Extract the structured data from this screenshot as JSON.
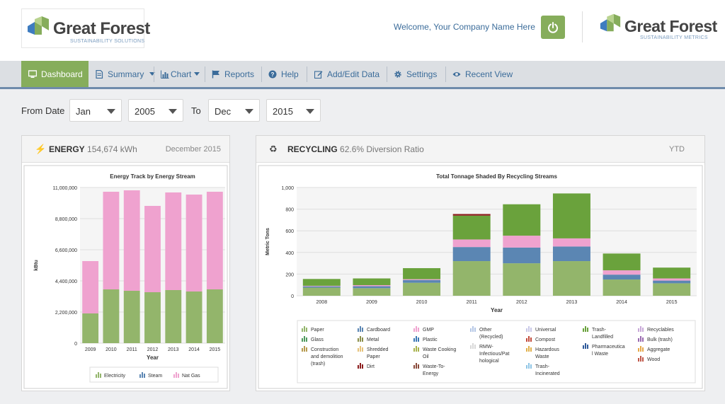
{
  "header": {
    "brand_name": "Great Forest",
    "brand_tagline": "SUSTAINABILITY SOLUTIONS",
    "brand2_name": "Great Forest",
    "brand2_tagline": "SUSTAINABILITY METRICS",
    "welcome": "Welcome, Your Company Name Here",
    "power_icon": "power-icon"
  },
  "nav": {
    "items": [
      {
        "label": "Dashboard",
        "icon": "monitor-icon",
        "active": true
      },
      {
        "label": "Summary",
        "icon": "document-icon",
        "dropdown": true
      },
      {
        "label": "Chart",
        "icon": "bar-chart-icon",
        "dropdown": true
      },
      {
        "label": "Reports",
        "icon": "flag-icon"
      },
      {
        "label": "Help",
        "icon": "question-icon"
      },
      {
        "label": "Add/Edit Data",
        "icon": "edit-icon"
      },
      {
        "label": "Settings",
        "icon": "gear-icon"
      },
      {
        "label": "Recent View",
        "icon": "eye-icon"
      }
    ]
  },
  "filters": {
    "from_label": "From Date",
    "to_label": "To",
    "from_month": "Jan",
    "from_year": "2005",
    "to_month": "Dec",
    "to_year": "2015"
  },
  "energy_panel": {
    "title": "ENERGY",
    "value": "154,674 kWh",
    "period": "December 2015"
  },
  "recycling_panel": {
    "title": "RECYCLING",
    "value": "62.6% Diversion Ratio",
    "period": "YTD"
  },
  "colors": {
    "accent_green": "#86ad5b",
    "nav_blue": "#3b6c9a",
    "electricity": "#93b56b",
    "steam": "#5b86b3",
    "nat_gas": "#efa2cf",
    "trash_landfilled": "#6aa23c",
    "dirt": "#8c1d1d"
  },
  "chart_data": [
    {
      "type": "bar",
      "stacked": true,
      "title": "Energy Track by Energy Stream",
      "xlabel": "Year",
      "ylabel": "kBtu",
      "categories": [
        "2009",
        "2010",
        "2011",
        "2012",
        "2013",
        "2014",
        "2015"
      ],
      "yticks": [
        "0",
        "2,200,000",
        "4,400,000",
        "6,600,000",
        "8,800,000",
        "11,000,000"
      ],
      "ylim": [
        0,
        11000000
      ],
      "grid": true,
      "legend": "bottom",
      "series": [
        {
          "name": "Electricity",
          "color": "#93b56b",
          "values": [
            2100000,
            3800000,
            3700000,
            3600000,
            3750000,
            3650000,
            3800000
          ]
        },
        {
          "name": "Steam",
          "color": "#5b86b3",
          "values": [
            0,
            0,
            0,
            0,
            0,
            0,
            0
          ]
        },
        {
          "name": "Nat Gas",
          "color": "#efa2cf",
          "values": [
            3700000,
            6900000,
            7100000,
            6100000,
            6900000,
            6850000,
            6900000
          ]
        }
      ]
    },
    {
      "type": "bar",
      "stacked": true,
      "title": "Total Tonnage Shaded By Recycling Streams",
      "xlabel": "Year",
      "ylabel": "Metric Tons",
      "categories": [
        "2008",
        "2009",
        "2010",
        "2011",
        "2012",
        "2013",
        "2014",
        "2015"
      ],
      "yticks": [
        "0",
        "200",
        "400",
        "600",
        "800",
        "1,000"
      ],
      "ylim": [
        0,
        1000
      ],
      "grid": true,
      "legend": "bottom",
      "series": [
        {
          "name": "Paper",
          "color": "#93b56b",
          "values": [
            75,
            70,
            120,
            320,
            300,
            320,
            150,
            115
          ]
        },
        {
          "name": "Cardboard",
          "color": "#5b86b3",
          "values": [
            12,
            18,
            25,
            130,
            145,
            135,
            45,
            25
          ]
        },
        {
          "name": "GMP",
          "color": "#efa2cf",
          "values": [
            5,
            10,
            8,
            70,
            110,
            75,
            40,
            20
          ]
        },
        {
          "name": "Trash-Landfilled",
          "color": "#6aa23c",
          "values": [
            63,
            62,
            102,
            220,
            290,
            415,
            155,
            100
          ]
        },
        {
          "name": "Dirt",
          "color": "#8c1d1d",
          "values": [
            0,
            0,
            0,
            15,
            0,
            0,
            0,
            0
          ]
        }
      ],
      "legend_items": [
        {
          "label": "Paper",
          "color": "#93b56b"
        },
        {
          "label": "Glass",
          "color": "#4f9a5d"
        },
        {
          "label": "Construction and demolition (trash)",
          "color": "#b79a4f"
        },
        {
          "label": "Cardboard",
          "color": "#5b86b3"
        },
        {
          "label": "Metal",
          "color": "#8b8f4a"
        },
        {
          "label": "Shredded Paper",
          "color": "#e6c27a"
        },
        {
          "label": "Dirt",
          "color": "#8c1d1d"
        },
        {
          "label": "GMP",
          "color": "#efa2cf"
        },
        {
          "label": "Plastic",
          "color": "#3a77b5"
        },
        {
          "label": "Waste Cooking Oil",
          "color": "#a8b24c"
        },
        {
          "label": "Waste-To-Energy",
          "color": "#8a4a3a"
        },
        {
          "label": "Other (Recycled)",
          "color": "#b5c7e6"
        },
        {
          "label": "RMW-Infectious/Pathological",
          "color": "#d8d8d8"
        },
        {
          "label": "Universal",
          "color": "#c8c8e8"
        },
        {
          "label": "Compost",
          "color": "#c24a3a"
        },
        {
          "label": "Hazardous Waste",
          "color": "#e0b04a"
        },
        {
          "label": "Trash-Incinerated",
          "color": "#8fc6e6"
        },
        {
          "label": "Trash-Landfilled",
          "color": "#6aa23c"
        },
        {
          "label": "Pharmaceutical Waste",
          "color": "#2f5a9a"
        },
        {
          "label": "Recyclables",
          "color": "#c8a8d8"
        },
        {
          "label": "Bulk (trash)",
          "color": "#9a6ab0"
        },
        {
          "label": "Aggregate",
          "color": "#e6a84a"
        },
        {
          "label": "Wood",
          "color": "#c0584a"
        }
      ]
    }
  ]
}
